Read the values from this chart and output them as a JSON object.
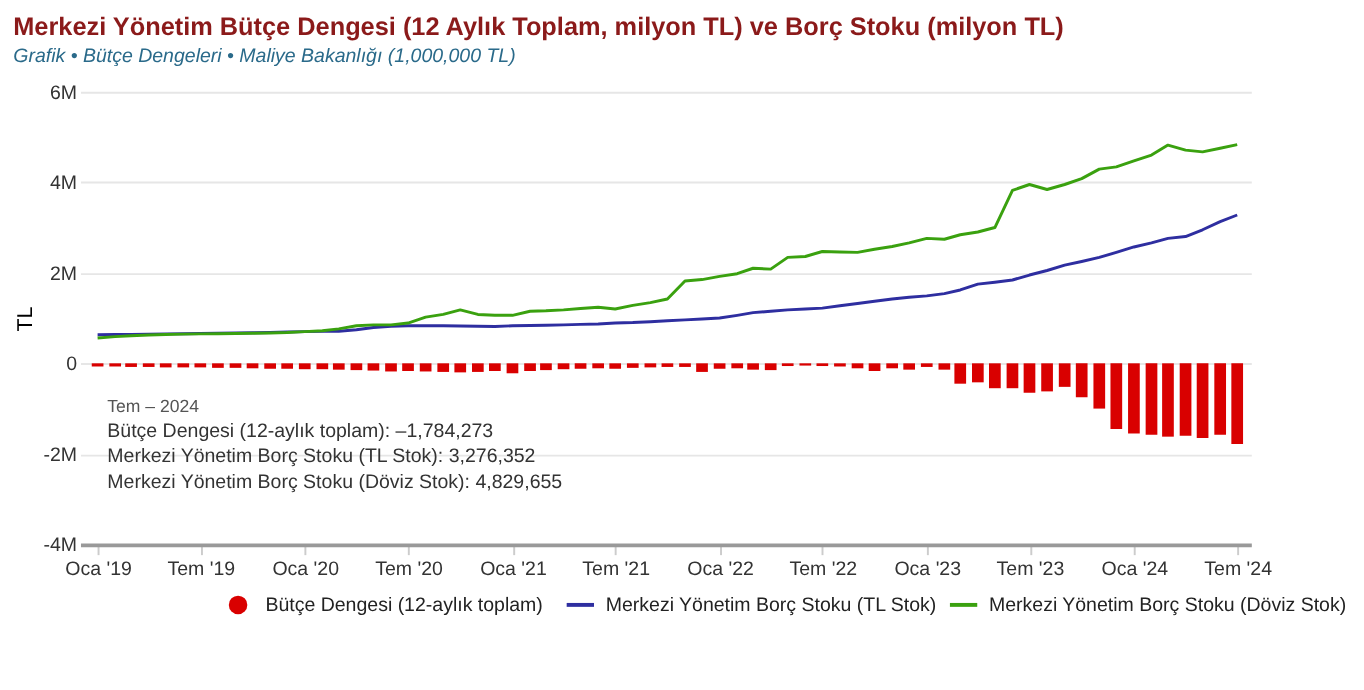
{
  "chart_data": {
    "type": "bar",
    "title": "Merkezi Yönetim Bütçe Dengesi (12 Aylık Toplam, milyon TL) ve Borç Stoku (milyon TL)",
    "subtitle": "Grafik • Bütçe Dengeleri • Maliye Bakanlığı (1,000,000 TL)",
    "ylabel": "TL",
    "x": [
      "2019-01",
      "2019-02",
      "2019-03",
      "2019-04",
      "2019-05",
      "2019-06",
      "2019-07",
      "2019-08",
      "2019-09",
      "2019-10",
      "2019-11",
      "2019-12",
      "2020-01",
      "2020-02",
      "2020-03",
      "2020-04",
      "2020-05",
      "2020-06",
      "2020-07",
      "2020-08",
      "2020-09",
      "2020-10",
      "2020-11",
      "2020-12",
      "2021-01",
      "2021-02",
      "2021-03",
      "2021-04",
      "2021-05",
      "2021-06",
      "2021-07",
      "2021-08",
      "2021-09",
      "2021-10",
      "2021-11",
      "2021-12",
      "2022-01",
      "2022-02",
      "2022-03",
      "2022-04",
      "2022-05",
      "2022-06",
      "2022-07",
      "2022-08",
      "2022-09",
      "2022-10",
      "2022-11",
      "2022-12",
      "2023-01",
      "2023-02",
      "2023-03",
      "2023-04",
      "2023-05",
      "2023-06",
      "2023-07",
      "2023-08",
      "2023-09",
      "2023-10",
      "2023-11",
      "2023-12",
      "2024-01",
      "2024-02",
      "2024-03",
      "2024-04",
      "2024-05",
      "2024-06",
      "2024-07"
    ],
    "series": [
      {
        "name": "Bütçe Dengesi (12-aylık toplam)",
        "color": "#d90000",
        "values": [
          -70000,
          -70000,
          -80000,
          -80000,
          -90000,
          -90000,
          -90000,
          -100000,
          -100000,
          -110000,
          -120000,
          -120000,
          -130000,
          -130000,
          -140000,
          -150000,
          -160000,
          -180000,
          -170000,
          -180000,
          -190000,
          -200000,
          -190000,
          -170000,
          -220000,
          -170000,
          -150000,
          -130000,
          -120000,
          -110000,
          -120000,
          -100000,
          -90000,
          -80000,
          -80000,
          -190000,
          -120000,
          -110000,
          -140000,
          -150000,
          -60000,
          -50000,
          -60000,
          -70000,
          -110000,
          -170000,
          -110000,
          -140000,
          -80000,
          -140000,
          -450000,
          -420000,
          -550000,
          -550000,
          -650000,
          -620000,
          -520000,
          -750000,
          -1000000,
          -1450000,
          -1550000,
          -1580000,
          -1620000,
          -1600000,
          -1650000,
          -1580000,
          -1784273
        ]
      },
      {
        "name": "Merkezi Yönetim Borç Stoku (TL Stok)",
        "type": "line",
        "color": "#2e2ea0",
        "values": [
          630000,
          635000,
          640000,
          645000,
          650000,
          655000,
          660000,
          665000,
          670000,
          675000,
          680000,
          690000,
          700000,
          705000,
          710000,
          740000,
          790000,
          820000,
          830000,
          830000,
          830000,
          825000,
          820000,
          815000,
          830000,
          835000,
          840000,
          850000,
          860000,
          870000,
          890000,
          900000,
          920000,
          940000,
          960000,
          980000,
          1000000,
          1060000,
          1120000,
          1150000,
          1180000,
          1200000,
          1220000,
          1270000,
          1320000,
          1370000,
          1420000,
          1460000,
          1490000,
          1540000,
          1620000,
          1750000,
          1790000,
          1840000,
          1950000,
          2050000,
          2170000,
          2250000,
          2340000,
          2450000,
          2570000,
          2660000,
          2760000,
          2800000,
          2950000,
          3130000,
          3276352
        ]
      },
      {
        "name": "Merkezi Yönetim Borç Stoku (Döviz Stok)",
        "type": "line",
        "color": "#3aa10f",
        "values": [
          560000,
          590000,
          610000,
          625000,
          635000,
          645000,
          650000,
          655000,
          660000,
          665000,
          670000,
          680000,
          700000,
          720000,
          760000,
          830000,
          850000,
          850000,
          890000,
          1020000,
          1080000,
          1180000,
          1080000,
          1060000,
          1060000,
          1150000,
          1160000,
          1180000,
          1210000,
          1240000,
          1200000,
          1280000,
          1340000,
          1420000,
          1820000,
          1850000,
          1920000,
          1980000,
          2100000,
          2080000,
          2340000,
          2360000,
          2470000,
          2460000,
          2450000,
          2520000,
          2580000,
          2660000,
          2760000,
          2740000,
          2840000,
          2900000,
          3000000,
          3820000,
          3950000,
          3840000,
          3950000,
          4080000,
          4290000,
          4340000,
          4470000,
          4600000,
          4820000,
          4710000,
          4670000,
          4750000,
          4829655
        ]
      }
    ],
    "xlim": [
      "2018-12-01",
      "2024-07-25"
    ],
    "xticks": [
      {
        "value": "2019-01",
        "label": "Oca '19"
      },
      {
        "value": "2019-07",
        "label": "Tem '19"
      },
      {
        "value": "2020-01",
        "label": "Oca '20"
      },
      {
        "value": "2020-07",
        "label": "Tem '20"
      },
      {
        "value": "2021-01",
        "label": "Oca '21"
      },
      {
        "value": "2021-07",
        "label": "Tem '21"
      },
      {
        "value": "2022-01",
        "label": "Oca '22"
      },
      {
        "value": "2022-07",
        "label": "Tem '22"
      },
      {
        "value": "2023-01",
        "label": "Oca '23"
      },
      {
        "value": "2023-07",
        "label": "Tem '23"
      },
      {
        "value": "2024-01",
        "label": "Oca '24"
      },
      {
        "value": "2024-07",
        "label": "Tem '24"
      }
    ],
    "ylim": [
      -4000000,
      6000000
    ],
    "yticks": [
      {
        "value": -4000000,
        "label": "-4M"
      },
      {
        "value": -2000000,
        "label": "-2M"
      },
      {
        "value": 0,
        "label": "0"
      },
      {
        "value": 2000000,
        "label": "2M"
      },
      {
        "value": 4000000,
        "label": "4M"
      },
      {
        "value": 6000000,
        "label": "6M"
      }
    ],
    "grid": "y",
    "legend": "bottom",
    "annotations": [
      "Tem – 2024",
      "Bütçe Dengesi (12-aylık toplam): –1,784,273",
      "Merkezi Yönetim Borç Stoku (TL Stok): 3,276,352",
      "Merkezi Yönetim Borç Stoku (Döviz Stok): 4,829,655"
    ]
  }
}
